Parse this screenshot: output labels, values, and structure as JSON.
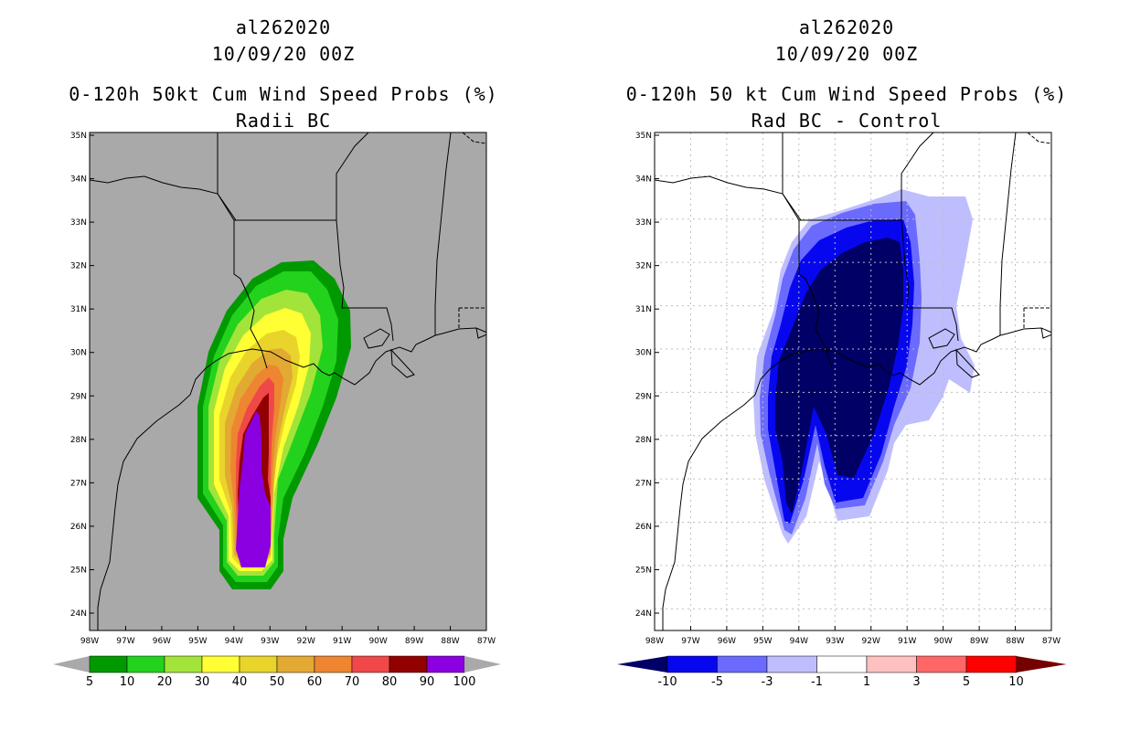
{
  "colors": {
    "land_gray": "#a9a9a9",
    "grid_dot": "#bdbdbd",
    "prob_colors": [
      "#009a00",
      "#23d21c",
      "#a3e43a",
      "#ffff33",
      "#e8d42a",
      "#e2a933",
      "#ee8530",
      "#f04848",
      "#930000",
      "#8a00e0"
    ],
    "diff_colors": [
      "#000066",
      "#0707ef",
      "#6a6aff",
      "#bebeff",
      "#ffffff",
      "#ffc0c0",
      "#ff6767",
      "#ff0000",
      "#760000"
    ]
  },
  "left_panel": {
    "storm_id": "al262020",
    "datetime": "10/09/20 00Z",
    "title": "0-120h 50kt Cum Wind Speed Probs (%)",
    "subtitle": "Radii BC"
  },
  "right_panel": {
    "storm_id": "al262020",
    "datetime": "10/09/20 00Z",
    "title": "0-120h 50 kt Cum Wind Speed Probs (%)",
    "subtitle": "Rad BC - Control"
  },
  "axes": {
    "lat_labels": [
      "35N",
      "34N",
      "33N",
      "32N",
      "31N",
      "30N",
      "29N",
      "28N",
      "27N",
      "26N",
      "25N",
      "24N"
    ],
    "lon_labels": [
      "98W",
      "97W",
      "96W",
      "95W",
      "94W",
      "93W",
      "92W",
      "91W",
      "90W",
      "89W",
      "88W",
      "87W"
    ]
  },
  "left_colorbar": {
    "labels": [
      "5",
      "10",
      "20",
      "30",
      "40",
      "50",
      "60",
      "70",
      "80",
      "90",
      "100"
    ]
  },
  "right_colorbar": {
    "labels": [
      "-10",
      "-5",
      "-3",
      "-1",
      "1",
      "3",
      "5",
      "10"
    ]
  }
}
